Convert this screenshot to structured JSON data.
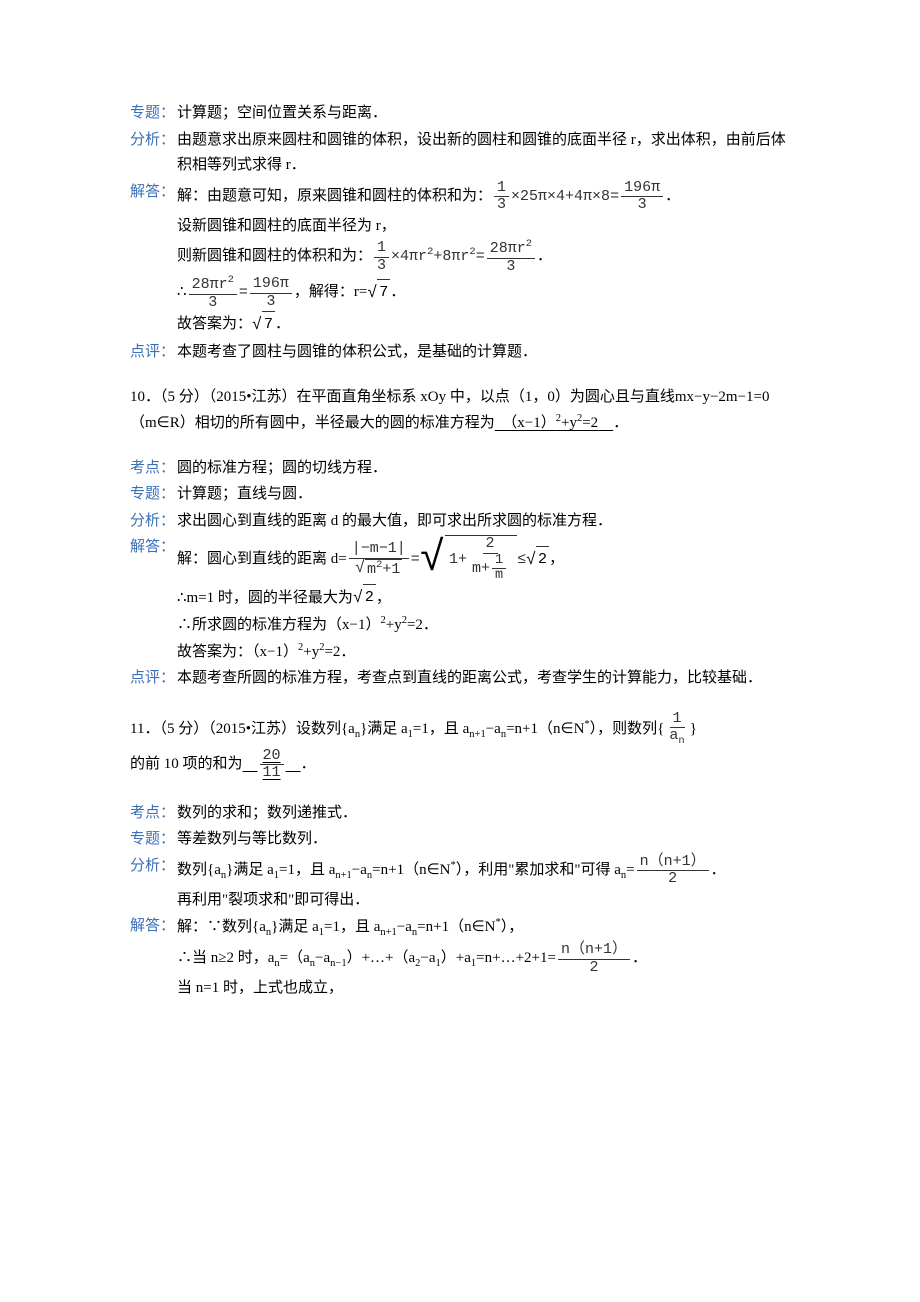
{
  "section9": {
    "zhuanti_label": "专题：",
    "zhuanti": "计算题；空间位置关系与距离．",
    "fenxi_label": "分析：",
    "fenxi": "由题意求出原来圆柱和圆锥的体积，设出新的圆柱和圆锥的底面半径 r，求出体积，由前后体积相等列式求得 r．",
    "jieda_label": "解答：",
    "jieda_ln1_pre": "解：由题意可知，原来圆锥和圆柱的体积和为：",
    "frac1_num": "1",
    "frac1_den": "3",
    "jieda_ln1_mid": "×25π×4+4π×8=",
    "frac2_num": "196π",
    "frac2_den": "3",
    "jieda_ln1_end": "．",
    "jieda_ln2": "设新圆锥和圆柱的底面半径为 r，",
    "jieda_ln3_pre": "则新圆锥和圆柱的体积和为：",
    "frac3_num": "1",
    "frac3_den": "3",
    "jieda_ln3_mid": "×4πr",
    "jieda_ln3_sup1": "2",
    "jieda_ln3_mid2": "+8πr",
    "jieda_ln3_sup2": "2",
    "jieda_ln3_mid3": "=",
    "frac4_num": "28πr",
    "frac4_num_sup": "2",
    "frac4_den": "3",
    "jieda_ln3_end": "．",
    "jieda_ln4_pre": "∴",
    "frac5_num": "28πr",
    "frac5_num_sup": "2",
    "frac5_den": "3",
    "jieda_ln4_eq": "=",
    "frac6_num": "196π",
    "frac6_den": "3",
    "jieda_ln4_mid": "，解得：r=",
    "sqrt7": "7",
    "jieda_ln4_end": "．",
    "jieda_ln5_pre": "故答案为：",
    "jieda_ln5_end": "．",
    "dianping_label": "点评：",
    "dianping": "本题考查了圆柱与圆锥的体积公式，是基础的计算题．"
  },
  "q10": {
    "stem_pre": "10．（5 分）（2015•江苏）在平面直角坐标系 xOy 中，以点（1，0）为圆心且与直线mx−y−2m−1=0（m∈R）相切的所有圆中，半径最大的圆的标准方程为",
    "ans_pre": "（x−1）",
    "ans_sup": "2",
    "ans_mid": "+y",
    "ans_sup2": "2",
    "ans_after": "=2",
    "stem_end": "．",
    "kaodian_label": "考点：",
    "kaodian": "圆的标准方程；圆的切线方程．",
    "zhuanti_label": "专题：",
    "zhuanti": "计算题；直线与圆．",
    "fenxi_label": "分析：",
    "fenxi": "求出圆心到直线的距离 d 的最大值，即可求出所求圆的标准方程．",
    "jieda_label": "解答：",
    "jieda_ln1_pre": "解：圆心到直线的距离 d=",
    "fracA_num": "|−m−1|",
    "fracA_den_pre": "m",
    "fracA_den_sup": "2",
    "fracA_den_post": "+1",
    "jieda_ln1_eq": "=",
    "bigsqrt_inner_pre": "1+",
    "bigsqrt_frac_num": "2",
    "bigsqrt_frac_den_pre": "m+",
    "bigsqrt_frac_den_inner_num": "1",
    "bigsqrt_frac_den_inner_den": "m",
    "jieda_ln1_le": "≤",
    "sqrt2": "2",
    "jieda_ln1_end": "，",
    "jieda_ln2_pre": "∴m=1 时，圆的半径最大为",
    "jieda_ln2_end": "，",
    "jieda_ln3_pre": "∴所求圆的标准方程为（x−1）",
    "jieda_ln3_sup": "2",
    "jieda_ln3_mid": "+y",
    "jieda_ln3_sup2": "2",
    "jieda_ln3_end": "=2．",
    "jieda_ln4_pre": "故答案为：（x−1）",
    "jieda_ln4_sup": "2",
    "jieda_ln4_mid": "+y",
    "jieda_ln4_sup2": "2",
    "jieda_ln4_end": "=2．",
    "dianping_label": "点评：",
    "dianping": "本题考查所圆的标准方程，考查点到直线的距离公式，考查学生的计算能力，比较基础．"
  },
  "q11": {
    "stem_pre": "11．（5 分）（2015•江苏）设数列{a",
    "stem_sub_n": "n",
    "stem_mid1": "}满足 a",
    "stem_sub_1": "1",
    "stem_mid2": "=1，且 a",
    "stem_sub_np1": "n+1",
    "stem_mid3": "−a",
    "stem_mid4": "=n+1（n∈N",
    "stem_sup_star": "*",
    "stem_mid5": "），则数列{",
    "frac_seq_num": "1",
    "frac_seq_den": "a",
    "frac_seq_den_sub": "n",
    "stem_mid6": "}",
    "stem_line2_pre": "的前 10 项的和为",
    "ans_frac_num": "20",
    "ans_frac_den": "11",
    "stem_line2_end": "．",
    "kaodian_label": "考点：",
    "kaodian": "数列的求和；数列递推式．",
    "zhuanti_label": "专题：",
    "zhuanti": "等差数列与等比数列．",
    "fenxi_label": "分析：",
    "fenxi_ln1_pre": "数列{a",
    "fenxi_ln1_mid1": "}满足 a",
    "fenxi_ln1_mid2": "=1，且 a",
    "fenxi_ln1_mid3": "−a",
    "fenxi_ln1_mid4": "=n+1（n∈N",
    "fenxi_ln1_mid5": "），利用\"累加求和\"可得 a",
    "fenxi_ln1_eq": "=",
    "fenxi_frac_num": "n（n+1）",
    "fenxi_frac_den": "2",
    "fenxi_ln1_end": "．",
    "fenxi_ln2": "再利用\"裂项求和\"即可得出．",
    "jieda_label": "解答：",
    "jieda_ln1_pre": "解：∵数列{a",
    "jieda_ln1_mid1": "}满足 a",
    "jieda_ln1_mid2": "=1，且 a",
    "jieda_ln1_mid3": "−a",
    "jieda_ln1_mid4": "=n+1（n∈N",
    "jieda_ln1_end": "），",
    "jieda_ln2_pre": "∴当 n≥2 时，a",
    "jieda_ln2_mid1": "=（a",
    "jieda_ln2_mid2": "−a",
    "jieda_ln2_sub_nm1": "n−1",
    "jieda_ln2_mid3": "）+…+（a",
    "jieda_ln2_sub_2": "2",
    "jieda_ln2_mid4": "−a",
    "jieda_ln2_mid5": "）+a",
    "jieda_ln2_mid6": "=n+…+2+1=",
    "jieda_frac_num": "n（n+1）",
    "jieda_frac_den": "2",
    "jieda_ln2_end": "．",
    "jieda_ln3": "当 n=1 时，上式也成立，"
  }
}
